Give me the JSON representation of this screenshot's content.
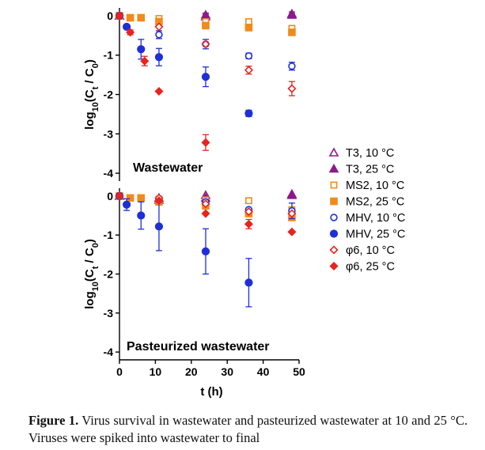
{
  "figure": {
    "caption_label": "Figure 1.",
    "caption_text": "Virus survival in wastewater and pasteurized wastewater at 10 and 25 °C. Viruses were spiked into wastewater to final"
  },
  "chart_data": [
    {
      "type": "scatter",
      "panel_label": "Wastewater",
      "ylabel": "log10(Ct / C0)",
      "xlabel": "",
      "xlim": [
        0,
        50
      ],
      "ylim": [
        -4.2,
        0.2
      ],
      "yticks": [
        0,
        -1,
        -2,
        -3,
        -4
      ],
      "xticks": [
        0,
        10,
        20,
        30,
        40,
        50
      ],
      "grid": false,
      "series": [
        {
          "name": "T3, 10 °C",
          "color": "#8b1a8b",
          "marker": "triangle-open",
          "points": [
            {
              "x": 0,
              "y": 0
            },
            {
              "x": 24,
              "y": 0.02,
              "err": 0.05
            },
            {
              "x": 48,
              "y": 0.05,
              "err": 0.05
            }
          ]
        },
        {
          "name": "T3, 25 °C",
          "color": "#8b1a8b",
          "marker": "triangle-filled",
          "points": [
            {
              "x": 0,
              "y": 0
            },
            {
              "x": 24,
              "y": -0.02,
              "err": 0.06
            },
            {
              "x": 48,
              "y": 0.02,
              "err": 0.04
            }
          ]
        },
        {
          "name": "MS2, 10 °C",
          "color": "#f08a1c",
          "marker": "square-open",
          "points": [
            {
              "x": 0,
              "y": 0
            },
            {
              "x": 3,
              "y": -0.05
            },
            {
              "x": 11,
              "y": -0.07
            },
            {
              "x": 24,
              "y": -0.15,
              "err": 0.05
            },
            {
              "x": 36,
              "y": -0.15
            },
            {
              "x": 48,
              "y": -0.32,
              "err": 0.05
            }
          ]
        },
        {
          "name": "MS2, 25 °C",
          "color": "#f08a1c",
          "marker": "square-filled",
          "points": [
            {
              "x": 0,
              "y": 0
            },
            {
              "x": 3,
              "y": -0.05
            },
            {
              "x": 6,
              "y": -0.05
            },
            {
              "x": 11,
              "y": -0.15
            },
            {
              "x": 24,
              "y": -0.25,
              "err": 0.05
            },
            {
              "x": 36,
              "y": -0.3
            },
            {
              "x": 48,
              "y": -0.42,
              "err": 0.04
            }
          ]
        },
        {
          "name": "MHV, 10 °C",
          "color": "#1f2fd6",
          "marker": "circle-open",
          "points": [
            {
              "x": 0,
              "y": 0
            },
            {
              "x": 11,
              "y": -0.48,
              "err": 0.1
            },
            {
              "x": 24,
              "y": -0.72,
              "err": 0.12
            },
            {
              "x": 36,
              "y": -1.02,
              "err": 0.07
            },
            {
              "x": 48,
              "y": -1.28,
              "err": 0.1
            }
          ]
        },
        {
          "name": "MHV, 25 °C",
          "color": "#1f2fd6",
          "marker": "circle-filled",
          "points": [
            {
              "x": 0,
              "y": 0
            },
            {
              "x": 2,
              "y": -0.28
            },
            {
              "x": 6,
              "y": -0.85,
              "err": 0.25
            },
            {
              "x": 11,
              "y": -1.05,
              "err": 0.22
            },
            {
              "x": 24,
              "y": -1.55,
              "err": 0.25
            },
            {
              "x": 36,
              "y": -2.48,
              "err": 0.08
            }
          ]
        },
        {
          "name": "φ6, 10 °C",
          "color": "#e8241f",
          "marker": "diamond-open",
          "points": [
            {
              "x": 0,
              "y": 0
            },
            {
              "x": 11,
              "y": -0.28
            },
            {
              "x": 24,
              "y": -0.72
            },
            {
              "x": 36,
              "y": -1.38,
              "err": 0.1
            },
            {
              "x": 48,
              "y": -1.85,
              "err": 0.18
            }
          ]
        },
        {
          "name": "φ6, 25 °C",
          "color": "#e8241f",
          "marker": "diamond-filled",
          "points": [
            {
              "x": 0,
              "y": 0
            },
            {
              "x": 3,
              "y": -0.42,
              "err": 0.06
            },
            {
              "x": 7,
              "y": -1.15,
              "err": 0.12
            },
            {
              "x": 11,
              "y": -1.92
            },
            {
              "x": 24,
              "y": -3.22,
              "err": 0.2
            }
          ]
        }
      ]
    },
    {
      "type": "scatter",
      "panel_label": "Pasteurized wastewater",
      "ylabel": "log10(Ct / C0)",
      "xlabel": "t (h)",
      "xlim": [
        0,
        50
      ],
      "ylim": [
        -4.2,
        0.2
      ],
      "yticks": [
        0,
        -1,
        -2,
        -3,
        -4
      ],
      "xticks": [
        0,
        10,
        20,
        30,
        40,
        50
      ],
      "xticklabels": [
        "0",
        "10",
        "20",
        "30",
        "40",
        "50"
      ],
      "grid": false,
      "legend_position": "right",
      "series": [
        {
          "name": "T3, 10 °C",
          "color": "#8b1a8b",
          "marker": "triangle-open",
          "points": [
            {
              "x": 0,
              "y": 0
            },
            {
              "x": 11,
              "y": -0.05
            },
            {
              "x": 24,
              "y": 0.02
            },
            {
              "x": 48,
              "y": 0.05
            }
          ]
        },
        {
          "name": "T3, 25 °C",
          "color": "#8b1a8b",
          "marker": "triangle-filled",
          "points": [
            {
              "x": 0,
              "y": 0
            },
            {
              "x": 11,
              "y": -0.1
            },
            {
              "x": 24,
              "y": -0.05
            },
            {
              "x": 48,
              "y": 0.02
            }
          ]
        },
        {
          "name": "MS2, 10 °C",
          "color": "#f08a1c",
          "marker": "square-open",
          "points": [
            {
              "x": 0,
              "y": 0
            },
            {
              "x": 3,
              "y": -0.05
            },
            {
              "x": 11,
              "y": -0.08
            },
            {
              "x": 24,
              "y": -0.1
            },
            {
              "x": 36,
              "y": -0.12
            },
            {
              "x": 48,
              "y": -0.35
            }
          ]
        },
        {
          "name": "MS2, 25 °C",
          "color": "#f08a1c",
          "marker": "square-filled",
          "points": [
            {
              "x": 0,
              "y": 0
            },
            {
              "x": 3,
              "y": -0.05
            },
            {
              "x": 6,
              "y": -0.05
            },
            {
              "x": 11,
              "y": -0.15
            },
            {
              "x": 24,
              "y": -0.25
            },
            {
              "x": 36,
              "y": -0.45
            },
            {
              "x": 48,
              "y": -0.55
            }
          ]
        },
        {
          "name": "MHV, 10 °C",
          "color": "#1f2fd6",
          "marker": "circle-open",
          "points": [
            {
              "x": 0,
              "y": 0
            },
            {
              "x": 11,
              "y": -0.1
            },
            {
              "x": 24,
              "y": -0.15
            },
            {
              "x": 36,
              "y": -0.35
            },
            {
              "x": 48,
              "y": -0.38,
              "err": 0.2
            }
          ]
        },
        {
          "name": "MHV, 25 °C",
          "color": "#1f2fd6",
          "marker": "circle-filled",
          "points": [
            {
              "x": 0,
              "y": 0
            },
            {
              "x": 2,
              "y": -0.22,
              "err": 0.15
            },
            {
              "x": 6,
              "y": -0.5,
              "err": 0.35
            },
            {
              "x": 11,
              "y": -0.78,
              "err": 0.62
            },
            {
              "x": 24,
              "y": -1.42,
              "err": 0.58
            },
            {
              "x": 36,
              "y": -2.22,
              "err": 0.62
            }
          ]
        },
        {
          "name": "φ6, 10 °C",
          "color": "#e8241f",
          "marker": "diamond-open",
          "points": [
            {
              "x": 0,
              "y": 0
            },
            {
              "x": 11,
              "y": -0.05
            },
            {
              "x": 24,
              "y": -0.2
            },
            {
              "x": 36,
              "y": -0.4
            },
            {
              "x": 48,
              "y": -0.45
            }
          ]
        },
        {
          "name": "φ6, 25 °C",
          "color": "#e8241f",
          "marker": "diamond-filled",
          "points": [
            {
              "x": 0,
              "y": 0
            },
            {
              "x": 11,
              "y": -0.12
            },
            {
              "x": 24,
              "y": -0.45
            },
            {
              "x": 36,
              "y": -0.72,
              "err": 0.12
            },
            {
              "x": 48,
              "y": -0.92
            }
          ]
        }
      ]
    }
  ]
}
